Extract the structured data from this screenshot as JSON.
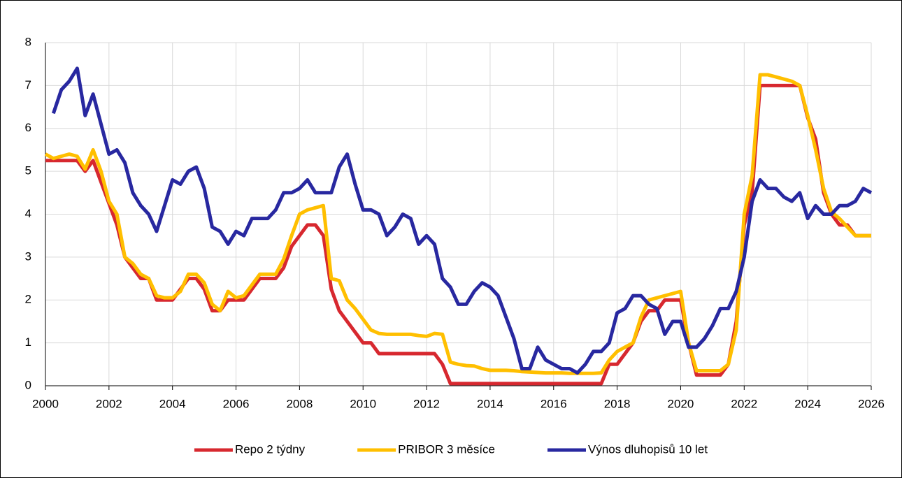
{
  "chart_data": {
    "type": "line",
    "x": [
      2000,
      2000.25,
      2000.5,
      2000.75,
      2001,
      2001.25,
      2001.5,
      2001.75,
      2002,
      2002.25,
      2002.5,
      2002.75,
      2003,
      2003.25,
      2003.5,
      2003.75,
      2004,
      2004.25,
      2004.5,
      2004.75,
      2005,
      2005.25,
      2005.5,
      2005.75,
      2006,
      2006.25,
      2006.5,
      2006.75,
      2007,
      2007.25,
      2007.5,
      2007.75,
      2008,
      2008.25,
      2008.5,
      2008.75,
      2009,
      2009.25,
      2009.5,
      2009.75,
      2010,
      2010.25,
      2010.5,
      2010.75,
      2011,
      2011.25,
      2011.5,
      2011.75,
      2012,
      2012.25,
      2012.5,
      2012.75,
      2013,
      2013.25,
      2013.5,
      2013.75,
      2014,
      2014.25,
      2014.5,
      2014.75,
      2015,
      2015.25,
      2015.5,
      2015.75,
      2016,
      2016.25,
      2016.5,
      2016.75,
      2017,
      2017.25,
      2017.5,
      2017.75,
      2018,
      2018.25,
      2018.5,
      2018.75,
      2019,
      2019.25,
      2019.5,
      2019.75,
      2020,
      2020.25,
      2020.5,
      2020.75,
      2021,
      2021.25,
      2021.5,
      2021.75,
      2022,
      2022.25,
      2022.5,
      2022.75,
      2023,
      2023.25,
      2023.5,
      2023.75,
      2024,
      2024.25,
      2024.5,
      2024.75,
      2025,
      2025.25,
      2025.5,
      2025.75,
      2026
    ],
    "series": [
      {
        "name": "Repo 2 týdny",
        "color": "#d7282f",
        "values": [
          5.25,
          5.25,
          5.25,
          5.25,
          5.25,
          5.0,
          5.25,
          4.75,
          4.25,
          3.75,
          3.0,
          2.75,
          2.5,
          2.5,
          2.0,
          2.0,
          2.0,
          2.25,
          2.5,
          2.5,
          2.25,
          1.75,
          1.75,
          2.0,
          2.0,
          2.0,
          2.25,
          2.5,
          2.5,
          2.5,
          2.75,
          3.25,
          3.5,
          3.75,
          3.75,
          3.5,
          2.25,
          1.75,
          1.5,
          1.25,
          1.0,
          1.0,
          0.75,
          0.75,
          0.75,
          0.75,
          0.75,
          0.75,
          0.75,
          0.75,
          0.5,
          0.05,
          0.05,
          0.05,
          0.05,
          0.05,
          0.05,
          0.05,
          0.05,
          0.05,
          0.05,
          0.05,
          0.05,
          0.05,
          0.05,
          0.05,
          0.05,
          0.05,
          0.05,
          0.05,
          0.05,
          0.5,
          0.5,
          0.75,
          1.0,
          1.5,
          1.75,
          1.75,
          2.0,
          2.0,
          2.0,
          1.0,
          0.25,
          0.25,
          0.25,
          0.25,
          0.5,
          1.5,
          3.75,
          4.5,
          7.0,
          7.0,
          7.0,
          7.0,
          7.0,
          7.0,
          6.25,
          5.75,
          4.5,
          4.0,
          3.75,
          3.75,
          3.5,
          3.5,
          3.5
        ]
      },
      {
        "name": "PRIBOR 3 měsíce",
        "color": "#ffbf00",
        "values": [
          5.4,
          5.3,
          5.35,
          5.4,
          5.35,
          5.05,
          5.5,
          5.0,
          4.3,
          4.0,
          3.0,
          2.85,
          2.6,
          2.5,
          2.1,
          2.05,
          2.05,
          2.2,
          2.6,
          2.6,
          2.4,
          1.9,
          1.75,
          2.2,
          2.05,
          2.1,
          2.35,
          2.6,
          2.6,
          2.6,
          2.95,
          3.5,
          4.0,
          4.1,
          4.15,
          4.2,
          2.5,
          2.45,
          2.0,
          1.8,
          1.55,
          1.3,
          1.22,
          1.2,
          1.2,
          1.2,
          1.2,
          1.17,
          1.15,
          1.22,
          1.2,
          0.55,
          0.5,
          0.47,
          0.46,
          0.4,
          0.36,
          0.36,
          0.36,
          0.35,
          0.33,
          0.32,
          0.31,
          0.3,
          0.3,
          0.3,
          0.29,
          0.29,
          0.29,
          0.29,
          0.3,
          0.6,
          0.8,
          0.9,
          1.0,
          1.6,
          2.0,
          2.05,
          2.1,
          2.15,
          2.2,
          1.0,
          0.35,
          0.35,
          0.35,
          0.35,
          0.5,
          1.3,
          4.0,
          4.9,
          7.25,
          7.25,
          7.2,
          7.15,
          7.1,
          7.0,
          6.3,
          5.5,
          4.6,
          4.05,
          3.9,
          3.7,
          3.5,
          3.5,
          3.5
        ]
      },
      {
        "name": "Výnos dluhopisů 10 let",
        "color": "#2828a0",
        "values": [
          null,
          6.35,
          6.9,
          7.1,
          7.4,
          6.3,
          6.8,
          6.1,
          5.4,
          5.5,
          5.2,
          4.5,
          4.2,
          4.0,
          3.6,
          4.2,
          4.8,
          4.7,
          5.0,
          5.1,
          4.6,
          3.7,
          3.6,
          3.3,
          3.6,
          3.5,
          3.9,
          3.9,
          3.9,
          4.1,
          4.5,
          4.5,
          4.6,
          4.8,
          4.5,
          4.5,
          4.5,
          5.1,
          5.4,
          4.7,
          4.1,
          4.1,
          4.0,
          3.5,
          3.7,
          4.0,
          3.9,
          3.3,
          3.5,
          3.3,
          2.5,
          2.3,
          1.9,
          1.9,
          2.2,
          2.4,
          2.3,
          2.1,
          1.6,
          1.1,
          0.4,
          0.4,
          0.9,
          0.6,
          0.5,
          0.4,
          0.4,
          0.3,
          0.5,
          0.8,
          0.8,
          1.0,
          1.7,
          1.8,
          2.1,
          2.1,
          1.9,
          1.8,
          1.2,
          1.5,
          1.5,
          0.9,
          0.9,
          1.1,
          1.4,
          1.8,
          1.8,
          2.2,
          3.0,
          4.3,
          4.8,
          4.6,
          4.6,
          4.4,
          4.3,
          4.5,
          3.9,
          4.2,
          4.0,
          4.0,
          4.2,
          4.2,
          4.3,
          4.6,
          4.5
        ]
      }
    ],
    "xlim": [
      2000,
      2026
    ],
    "xticks": [
      2000,
      2002,
      2004,
      2006,
      2008,
      2010,
      2012,
      2014,
      2016,
      2018,
      2020,
      2022,
      2024,
      2026
    ],
    "ylim": [
      0,
      8
    ],
    "yticks": [
      0,
      1,
      2,
      3,
      4,
      5,
      6,
      7,
      8
    ],
    "grid": true,
    "legend": "bottom"
  }
}
